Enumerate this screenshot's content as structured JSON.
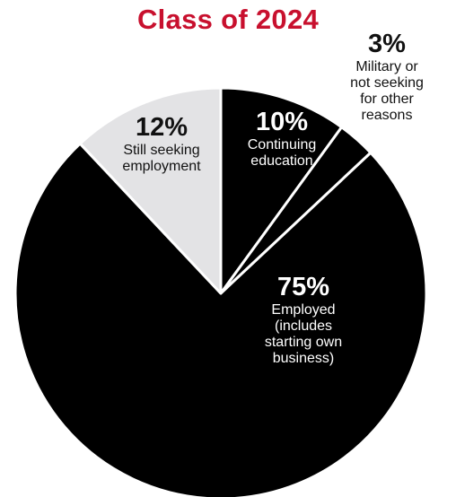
{
  "chart_data": {
    "type": "pie",
    "title": "Class of 2024",
    "slices": [
      {
        "label": "Continuing education",
        "display": "Continuing\neducation",
        "pct_text": "10%",
        "value": 10,
        "color": "#000000",
        "text_color": "#ffffff"
      },
      {
        "label": "Military or not seeking for other reasons",
        "display": "Military or\nnot seeking\nfor other\nreasons",
        "pct_text": "3%",
        "value": 3,
        "color": "#000000",
        "text_color": "#111111"
      },
      {
        "label": "Employed (includes starting own business)",
        "display": "Employed\n(includes\nstarting own\nbusiness)",
        "pct_text": "75%",
        "value": 75,
        "color": "#000000",
        "text_color": "#ffffff"
      },
      {
        "label": "Still seeking employment",
        "display": "Still seeking\nemployment",
        "pct_text": "12%",
        "value": 12,
        "color": "#e3e3e5",
        "text_color": "#111111"
      }
    ],
    "start_angle": "12 o'clock",
    "direction": "clockwise",
    "separator_color": "#ffffff",
    "legend": "none"
  },
  "colors": {
    "title": "#c8102e"
  }
}
